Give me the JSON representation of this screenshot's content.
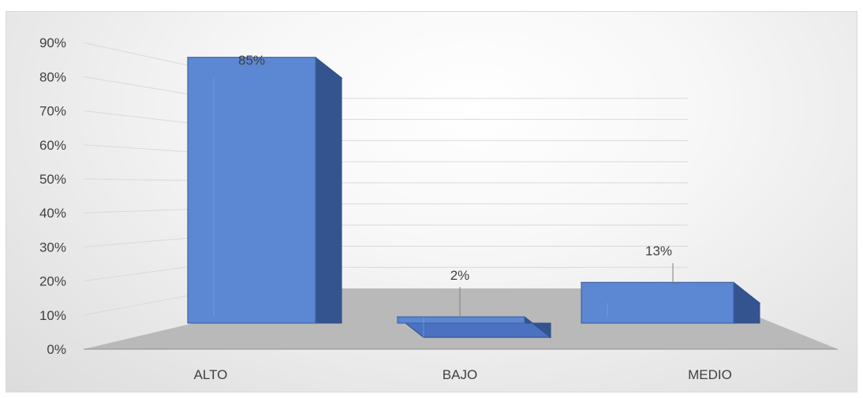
{
  "chart_data": {
    "type": "bar",
    "categories": [
      "ALTO",
      "BAJO",
      "MEDIO"
    ],
    "values": [
      85,
      2,
      13
    ],
    "value_labels": [
      "85%",
      "2%",
      "13%"
    ],
    "yticks": [
      "0%",
      "10%",
      "20%",
      "30%",
      "40%",
      "50%",
      "60%",
      "70%",
      "80%",
      "90%"
    ],
    "ylim": [
      0,
      90
    ],
    "grid": true,
    "style": "3d-column",
    "colors": {
      "bar_front": "#5b87d3",
      "bar_side": "#34548f",
      "bar_top": "#4a72c0",
      "floor": "#b9b9b9",
      "gridline": "#d9d9d9",
      "text": "#404040"
    }
  }
}
